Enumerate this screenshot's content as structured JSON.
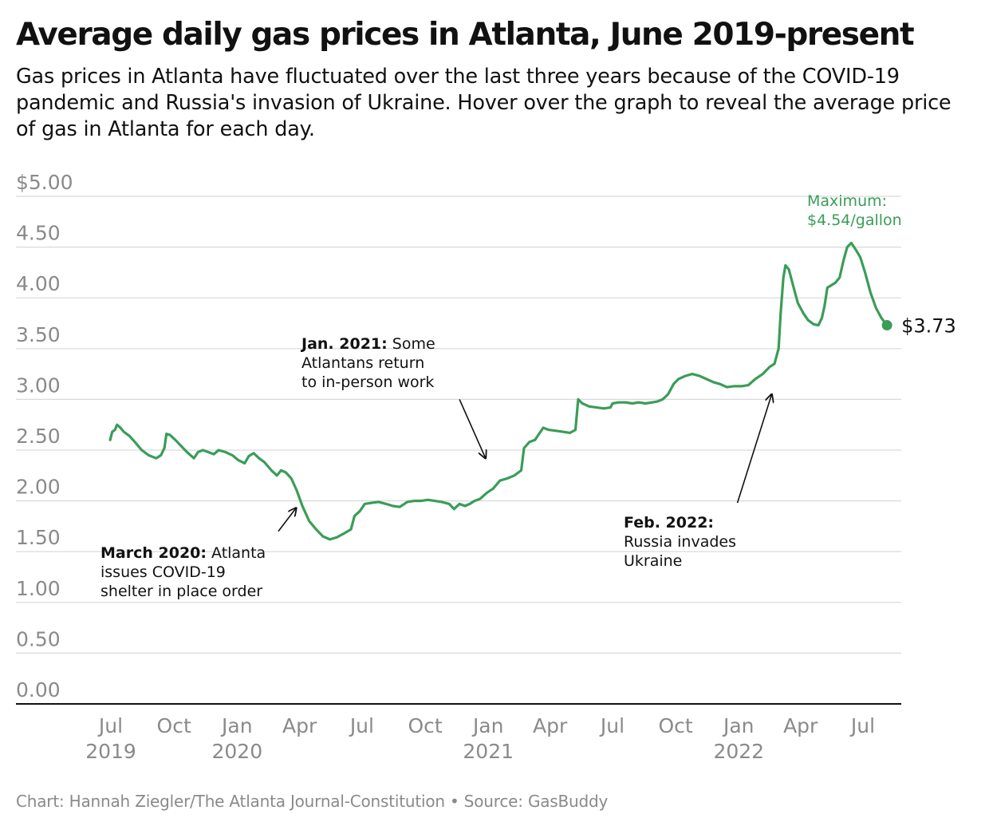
{
  "header": {
    "title": "Average daily gas prices in Atlanta, June 2019-present",
    "subtitle": "Gas prices in Atlanta have fluctuated over the last three years because of the COVID-19 pandemic and Russia's invasion of Ukraine. Hover over the graph to reveal the average price of gas in Atlanta for each day."
  },
  "footer": {
    "credit": "Chart: Hannah Ziegler/The Atlanta Journal-Constitution • Source: GasBuddy"
  },
  "colors": {
    "line": "#3a9d57",
    "grid": "#d9d9d9",
    "axis": "#111111",
    "tick_text": "#8a8a8a",
    "annotation": "#111111"
  },
  "chart_data": {
    "type": "line",
    "title": "Average daily gas prices in Atlanta, June 2019-present",
    "xlabel": "",
    "ylabel": "",
    "ylim": [
      0,
      5
    ],
    "grid": true,
    "y_ticks": [
      "$5.00",
      "4.50",
      "4.00",
      "3.50",
      "3.00",
      "2.50",
      "2.00",
      "1.50",
      "1.00",
      "0.50",
      "0.00"
    ],
    "x_ticks": [
      {
        "date": "2019-07-01",
        "label": "Jul",
        "year": "2019"
      },
      {
        "date": "2019-10-01",
        "label": "Oct",
        "year": ""
      },
      {
        "date": "2020-01-01",
        "label": "Jan",
        "year": "2020"
      },
      {
        "date": "2020-04-01",
        "label": "Apr",
        "year": ""
      },
      {
        "date": "2020-07-01",
        "label": "Jul",
        "year": ""
      },
      {
        "date": "2020-10-01",
        "label": "Oct",
        "year": ""
      },
      {
        "date": "2021-01-01",
        "label": "Jan",
        "year": "2021"
      },
      {
        "date": "2021-04-01",
        "label": "Apr",
        "year": ""
      },
      {
        "date": "2021-07-01",
        "label": "Jul",
        "year": ""
      },
      {
        "date": "2021-10-01",
        "label": "Oct",
        "year": ""
      },
      {
        "date": "2022-01-01",
        "label": "Jan",
        "year": "2022"
      },
      {
        "date": "2022-04-01",
        "label": "Apr",
        "year": ""
      },
      {
        "date": "2022-07-01",
        "label": "Jul",
        "year": ""
      }
    ],
    "series": [
      {
        "points": [
          [
            "2019-06-30",
            2.6
          ],
          [
            "2019-07-03",
            2.68
          ],
          [
            "2019-07-07",
            2.7
          ],
          [
            "2019-07-10",
            2.75
          ],
          [
            "2019-07-15",
            2.72
          ],
          [
            "2019-07-20",
            2.68
          ],
          [
            "2019-07-28",
            2.64
          ],
          [
            "2019-08-05",
            2.58
          ],
          [
            "2019-08-15",
            2.5
          ],
          [
            "2019-08-25",
            2.45
          ],
          [
            "2019-09-05",
            2.42
          ],
          [
            "2019-09-12",
            2.45
          ],
          [
            "2019-09-17",
            2.52
          ],
          [
            "2019-09-20",
            2.66
          ],
          [
            "2019-09-25",
            2.65
          ],
          [
            "2019-10-03",
            2.6
          ],
          [
            "2019-10-10",
            2.55
          ],
          [
            "2019-10-20",
            2.48
          ],
          [
            "2019-10-30",
            2.42
          ],
          [
            "2019-11-05",
            2.48
          ],
          [
            "2019-11-12",
            2.5
          ],
          [
            "2019-11-20",
            2.48
          ],
          [
            "2019-11-28",
            2.46
          ],
          [
            "2019-12-05",
            2.5
          ],
          [
            "2019-12-15",
            2.48
          ],
          [
            "2019-12-25",
            2.45
          ],
          [
            "2020-01-03",
            2.4
          ],
          [
            "2020-01-12",
            2.37
          ],
          [
            "2020-01-18",
            2.44
          ],
          [
            "2020-01-25",
            2.47
          ],
          [
            "2020-02-02",
            2.42
          ],
          [
            "2020-02-10",
            2.38
          ],
          [
            "2020-02-20",
            2.3
          ],
          [
            "2020-02-28",
            2.25
          ],
          [
            "2020-03-05",
            2.3
          ],
          [
            "2020-03-12",
            2.28
          ],
          [
            "2020-03-20",
            2.22
          ],
          [
            "2020-03-28",
            2.1
          ],
          [
            "2020-04-05",
            1.95
          ],
          [
            "2020-04-15",
            1.8
          ],
          [
            "2020-04-25",
            1.72
          ],
          [
            "2020-05-05",
            1.65
          ],
          [
            "2020-05-15",
            1.62
          ],
          [
            "2020-05-25",
            1.64
          ],
          [
            "2020-06-05",
            1.68
          ],
          [
            "2020-06-15",
            1.72
          ],
          [
            "2020-06-20",
            1.85
          ],
          [
            "2020-06-28",
            1.9
          ],
          [
            "2020-07-05",
            1.97
          ],
          [
            "2020-07-15",
            1.98
          ],
          [
            "2020-07-25",
            1.99
          ],
          [
            "2020-08-05",
            1.97
          ],
          [
            "2020-08-15",
            1.95
          ],
          [
            "2020-08-25",
            1.94
          ],
          [
            "2020-09-05",
            1.99
          ],
          [
            "2020-09-15",
            2.0
          ],
          [
            "2020-09-25",
            2.0
          ],
          [
            "2020-10-05",
            2.01
          ],
          [
            "2020-10-15",
            2.0
          ],
          [
            "2020-10-25",
            1.99
          ],
          [
            "2020-11-05",
            1.97
          ],
          [
            "2020-11-12",
            1.92
          ],
          [
            "2020-11-20",
            1.97
          ],
          [
            "2020-11-28",
            1.95
          ],
          [
            "2020-12-05",
            1.97
          ],
          [
            "2020-12-12",
            2.0
          ],
          [
            "2020-12-20",
            2.02
          ],
          [
            "2020-12-30",
            2.08
          ],
          [
            "2021-01-08",
            2.12
          ],
          [
            "2021-01-18",
            2.2
          ],
          [
            "2021-01-28",
            2.22
          ],
          [
            "2021-02-08",
            2.25
          ],
          [
            "2021-02-18",
            2.3
          ],
          [
            "2021-02-22",
            2.52
          ],
          [
            "2021-03-02",
            2.58
          ],
          [
            "2021-03-10",
            2.6
          ],
          [
            "2021-03-15",
            2.65
          ],
          [
            "2021-03-22",
            2.72
          ],
          [
            "2021-03-30",
            2.7
          ],
          [
            "2021-04-10",
            2.69
          ],
          [
            "2021-04-20",
            2.68
          ],
          [
            "2021-04-30",
            2.67
          ],
          [
            "2021-05-08",
            2.7
          ],
          [
            "2021-05-12",
            3.0
          ],
          [
            "2021-05-18",
            2.96
          ],
          [
            "2021-05-28",
            2.93
          ],
          [
            "2021-06-08",
            2.92
          ],
          [
            "2021-06-18",
            2.91
          ],
          [
            "2021-06-28",
            2.92
          ],
          [
            "2021-07-01",
            2.96
          ],
          [
            "2021-07-10",
            2.97
          ],
          [
            "2021-07-20",
            2.97
          ],
          [
            "2021-07-30",
            2.96
          ],
          [
            "2021-08-08",
            2.97
          ],
          [
            "2021-08-18",
            2.96
          ],
          [
            "2021-08-28",
            2.97
          ],
          [
            "2021-09-05",
            2.98
          ],
          [
            "2021-09-12",
            3.0
          ],
          [
            "2021-09-20",
            3.05
          ],
          [
            "2021-09-28",
            3.15
          ],
          [
            "2021-10-05",
            3.2
          ],
          [
            "2021-10-15",
            3.23
          ],
          [
            "2021-10-25",
            3.25
          ],
          [
            "2021-11-05",
            3.23
          ],
          [
            "2021-11-15",
            3.2
          ],
          [
            "2021-11-25",
            3.17
          ],
          [
            "2021-12-05",
            3.15
          ],
          [
            "2021-12-15",
            3.12
          ],
          [
            "2021-12-25",
            3.13
          ],
          [
            "2022-01-05",
            3.13
          ],
          [
            "2022-01-15",
            3.14
          ],
          [
            "2022-01-25",
            3.2
          ],
          [
            "2022-02-05",
            3.25
          ],
          [
            "2022-02-15",
            3.32
          ],
          [
            "2022-02-22",
            3.35
          ],
          [
            "2022-02-28",
            3.5
          ],
          [
            "2022-03-03",
            3.85
          ],
          [
            "2022-03-07",
            4.2
          ],
          [
            "2022-03-10",
            4.32
          ],
          [
            "2022-03-15",
            4.28
          ],
          [
            "2022-03-20",
            4.15
          ],
          [
            "2022-03-28",
            3.95
          ],
          [
            "2022-04-05",
            3.85
          ],
          [
            "2022-04-12",
            3.78
          ],
          [
            "2022-04-20",
            3.74
          ],
          [
            "2022-04-27",
            3.73
          ],
          [
            "2022-05-02",
            3.8
          ],
          [
            "2022-05-06",
            3.92
          ],
          [
            "2022-05-10",
            4.1
          ],
          [
            "2022-05-15",
            4.12
          ],
          [
            "2022-05-22",
            4.15
          ],
          [
            "2022-05-28",
            4.2
          ],
          [
            "2022-06-02",
            4.35
          ],
          [
            "2022-06-08",
            4.5
          ],
          [
            "2022-06-14",
            4.54
          ],
          [
            "2022-06-20",
            4.48
          ],
          [
            "2022-06-27",
            4.4
          ],
          [
            "2022-07-04",
            4.25
          ],
          [
            "2022-07-12",
            4.05
          ],
          [
            "2022-07-20",
            3.9
          ],
          [
            "2022-07-28",
            3.8
          ],
          [
            "2022-08-05",
            3.73
          ]
        ]
      }
    ],
    "end_value_label": "$3.73",
    "maximum_label": [
      "Maximum:",
      "$4.54/gallon"
    ],
    "annotations": [
      {
        "bold": "March 2020:",
        "lines": [
          "March 2020: Atlanta",
          "issues COVID-19",
          "shelter in place order"
        ],
        "boldLen": 11,
        "arrow_from_date": "2020-03-01",
        "arrow_from_value": 1.7,
        "arrow_to_date": "2020-03-27",
        "arrow_to_value": 1.93
      },
      {
        "bold": "Jan. 2021:",
        "lines": [
          "Jan. 2021: Some",
          "Atlantans return",
          "to in-person work"
        ],
        "boldLen": 10,
        "arrow_from_date": "2020-11-20",
        "arrow_from_value": 3.0,
        "arrow_to_date": "2020-12-28",
        "arrow_to_value": 2.42
      },
      {
        "bold": "Feb. 2022:",
        "lines": [
          "Feb. 2022:",
          "Russia invades",
          "Ukraine"
        ],
        "boldLen": 10,
        "arrow_from_date": "2021-12-30",
        "arrow_from_value": 1.98,
        "arrow_to_date": "2022-02-18",
        "arrow_to_value": 3.05
      }
    ]
  }
}
